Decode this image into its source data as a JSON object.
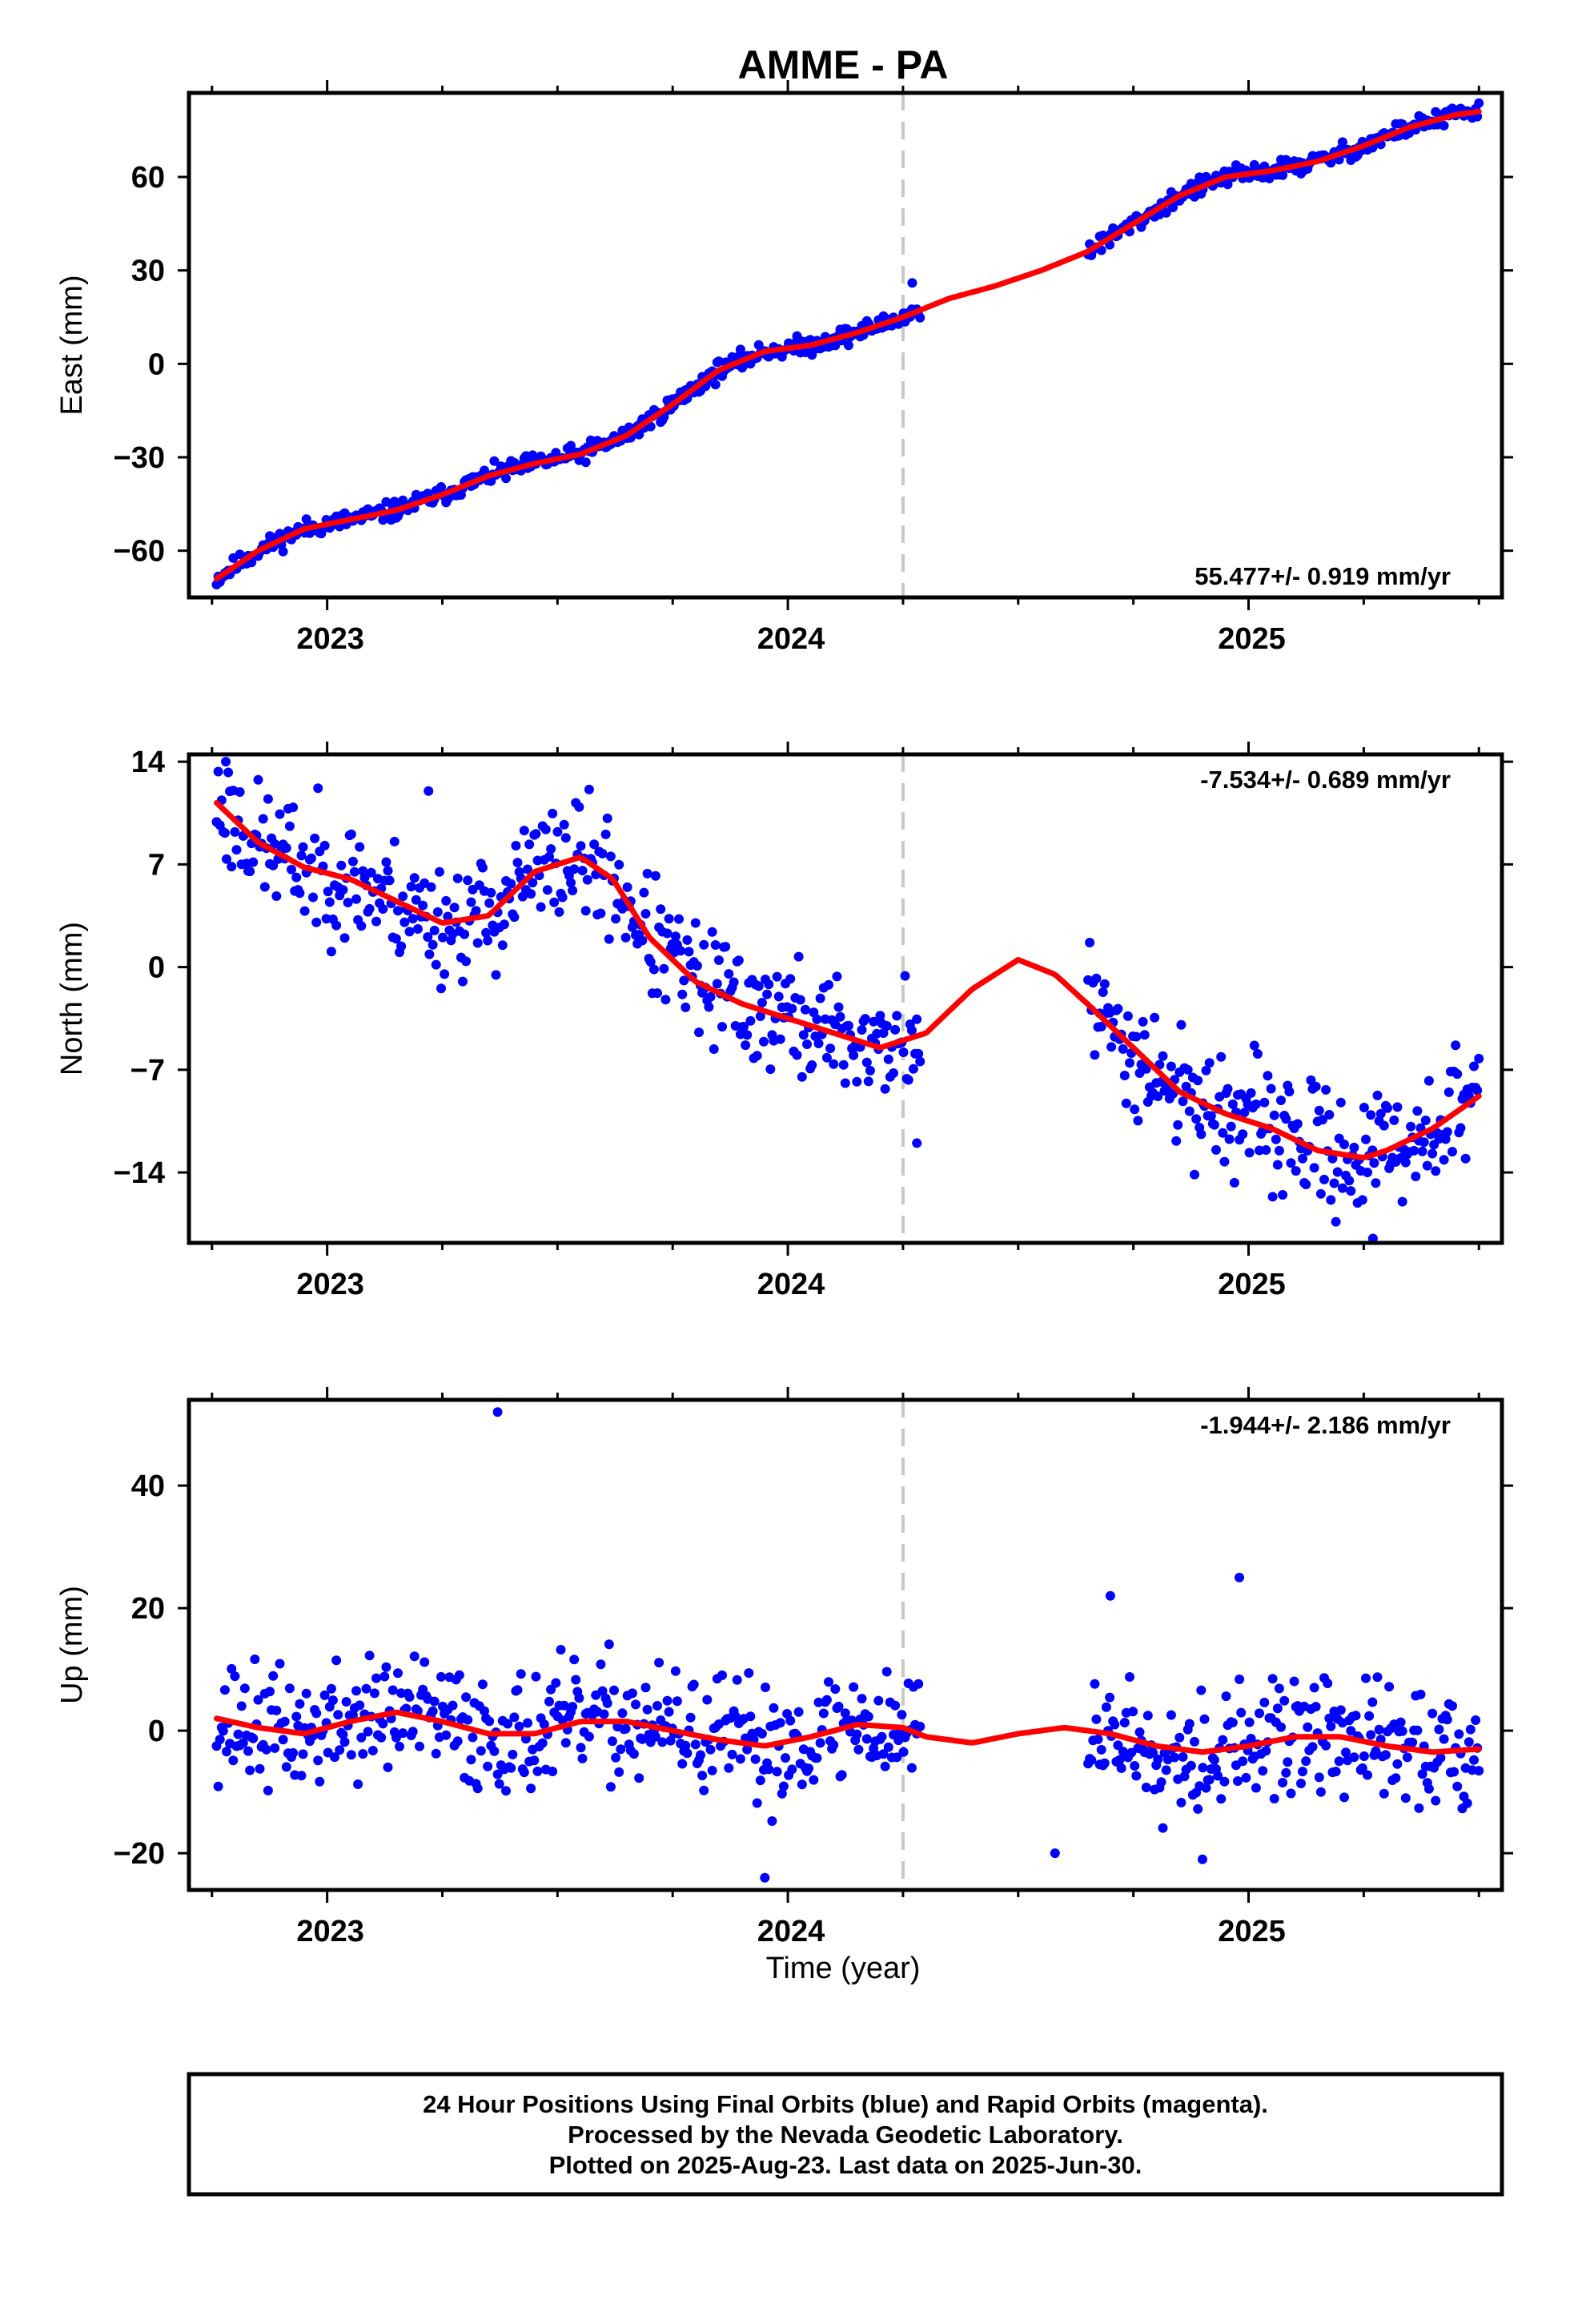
{
  "title": "AMME - PA",
  "colors": {
    "final_orbits": "#0000ff",
    "model": "#ff0000",
    "gap_marker": "#c8c8c8"
  },
  "chart_data": [
    {
      "type": "scatter",
      "panel": "east",
      "ylabel": "East (mm)",
      "xlabel": "",
      "xlim": [
        2022.7,
        2025.55
      ],
      "ylim": [
        -75,
        87
      ],
      "yticks": [
        -60,
        -30,
        0,
        30,
        60
      ],
      "ytick_labels": [
        "−60",
        "−30",
        "0",
        "30",
        "60"
      ],
      "xticks": [
        2023,
        2024,
        2025
      ],
      "xtick_labels": [
        "2023",
        "2024",
        "2025"
      ],
      "rate_label": "55.477+/- 0.919 mm/yr",
      "rate_position": "bottom-right",
      "vline_x": 2024.25,
      "data_gap": [
        2024.29,
        2024.65
      ],
      "scatter_seed": 11,
      "scatter_spread": 2.0,
      "extra_points": [
        [
          2024.27,
          26
        ]
      ],
      "series": [
        {
          "name": "",
          "kind": "points",
          "color": "#0000ff"
        },
        {
          "name": "",
          "kind": "line",
          "color": "#ff0000",
          "x": [
            2022.76,
            2022.85,
            2022.95,
            2023.05,
            2023.15,
            2023.25,
            2023.35,
            2023.45,
            2023.55,
            2023.65,
            2023.75,
            2023.85,
            2023.95,
            2024.05,
            2024.15,
            2024.25,
            2024.35,
            2024.45,
            2024.55,
            2024.65,
            2024.75,
            2024.85,
            2024.95,
            2025.05,
            2025.15,
            2025.25,
            2025.35,
            2025.45,
            2025.5
          ],
          "y": [
            -69,
            -60,
            -53,
            -50,
            -47,
            -42,
            -36,
            -32,
            -29,
            -23,
            -13,
            -2,
            4,
            6,
            10,
            15,
            21,
            25,
            30,
            36,
            45,
            54,
            60,
            62,
            65,
            70,
            76,
            80,
            81
          ]
        }
      ]
    },
    {
      "type": "scatter",
      "panel": "north",
      "ylabel": "North (mm)",
      "xlabel": "",
      "xlim": [
        2022.7,
        2025.55
      ],
      "ylim": [
        -18.8,
        14.5
      ],
      "yticks": [
        -14,
        -7,
        0,
        7,
        14
      ],
      "ytick_labels": [
        "−14",
        "−7",
        "0",
        "7",
        "14"
      ],
      "xticks": [
        2023,
        2024,
        2025
      ],
      "xtick_labels": [
        "2023",
        "2024",
        "2025"
      ],
      "rate_label": "-7.534+/- 0.689 mm/yr",
      "rate_position": "top-right",
      "vline_x": 2024.25,
      "data_gap": [
        2024.29,
        2024.65
      ],
      "scatter_seed": 23,
      "scatter_spread": 2.7,
      "extra_points": [
        [
          2024.28,
          -12
        ],
        [
          2022.78,
          14
        ],
        [
          2023.22,
          12
        ],
        [
          2025.27,
          -18.5
        ]
      ],
      "series": [
        {
          "name": "",
          "kind": "points",
          "color": "#0000ff"
        },
        {
          "name": "",
          "kind": "line",
          "color": "#ff0000",
          "x": [
            2022.76,
            2022.85,
            2022.95,
            2023.05,
            2023.15,
            2023.25,
            2023.35,
            2023.45,
            2023.55,
            2023.62,
            2023.7,
            2023.8,
            2023.9,
            2024.0,
            2024.1,
            2024.2,
            2024.3,
            2024.4,
            2024.5,
            2024.58,
            2024.65,
            2024.75,
            2024.85,
            2024.95,
            2025.05,
            2025.15,
            2025.25,
            2025.3,
            2025.4,
            2025.5
          ],
          "y": [
            11.2,
            8.5,
            6.8,
            6.0,
            4.5,
            3.0,
            3.5,
            6.5,
            7.5,
            6.0,
            2.0,
            -1.0,
            -2.5,
            -3.5,
            -4.5,
            -5.5,
            -4.5,
            -1.5,
            0.5,
            -0.5,
            -2.5,
            -5.5,
            -8.5,
            -10.0,
            -11.0,
            -12.5,
            -13.0,
            -12.5,
            -11.0,
            -8.8
          ]
        }
      ]
    },
    {
      "type": "scatter",
      "panel": "up",
      "ylabel": "Up (mm)",
      "xlabel": "Time (year)",
      "xlim": [
        2022.7,
        2025.55
      ],
      "ylim": [
        -26,
        54
      ],
      "yticks": [
        -20,
        0,
        20,
        40
      ],
      "ytick_labels": [
        "−20",
        "0",
        "20",
        "40"
      ],
      "xticks": [
        2023,
        2024,
        2025
      ],
      "xtick_labels": [
        "2023",
        "2024",
        "2025"
      ],
      "rate_label": "-1.944+/- 2.186 mm/yr",
      "rate_position": "top-right",
      "vline_x": 2024.25,
      "data_gap": [
        2024.29,
        2024.65
      ],
      "scatter_seed": 37,
      "scatter_spread": 6.5,
      "extra_points": [
        [
          2023.37,
          52
        ],
        [
          2024.98,
          25
        ],
        [
          2024.7,
          22
        ],
        [
          2024.58,
          -20
        ],
        [
          2023.95,
          -24
        ],
        [
          2024.9,
          -21
        ]
      ],
      "series": [
        {
          "name": "",
          "kind": "points",
          "color": "#0000ff"
        },
        {
          "name": "",
          "kind": "line",
          "color": "#ff0000",
          "x": [
            2022.76,
            2022.85,
            2022.95,
            2023.05,
            2023.15,
            2023.25,
            2023.35,
            2023.45,
            2023.55,
            2023.65,
            2023.75,
            2023.85,
            2023.95,
            2024.05,
            2024.15,
            2024.25,
            2024.3,
            2024.4,
            2024.5,
            2024.6,
            2024.7,
            2024.8,
            2024.9,
            2025.0,
            2025.1,
            2025.2,
            2025.3,
            2025.4,
            2025.5
          ],
          "y": [
            2.0,
            0.5,
            -0.5,
            1.5,
            3.0,
            1.5,
            -0.5,
            -0.5,
            1.5,
            1.5,
            0.0,
            -1.5,
            -2.5,
            -1.0,
            1.0,
            0.5,
            -1.0,
            -2.0,
            -0.5,
            0.5,
            -0.5,
            -2.5,
            -3.5,
            -2.5,
            -1.0,
            -1.0,
            -2.5,
            -3.5,
            -3.0
          ]
        }
      ]
    }
  ],
  "footer": {
    "line1": "24 Hour Positions Using Final Orbits (blue) and Rapid Orbits (magenta).",
    "line2": "Processed by the Nevada Geodetic Laboratory.",
    "line3": "Plotted on 2025-Aug-23. Last data on 2025-Jun-30."
  }
}
